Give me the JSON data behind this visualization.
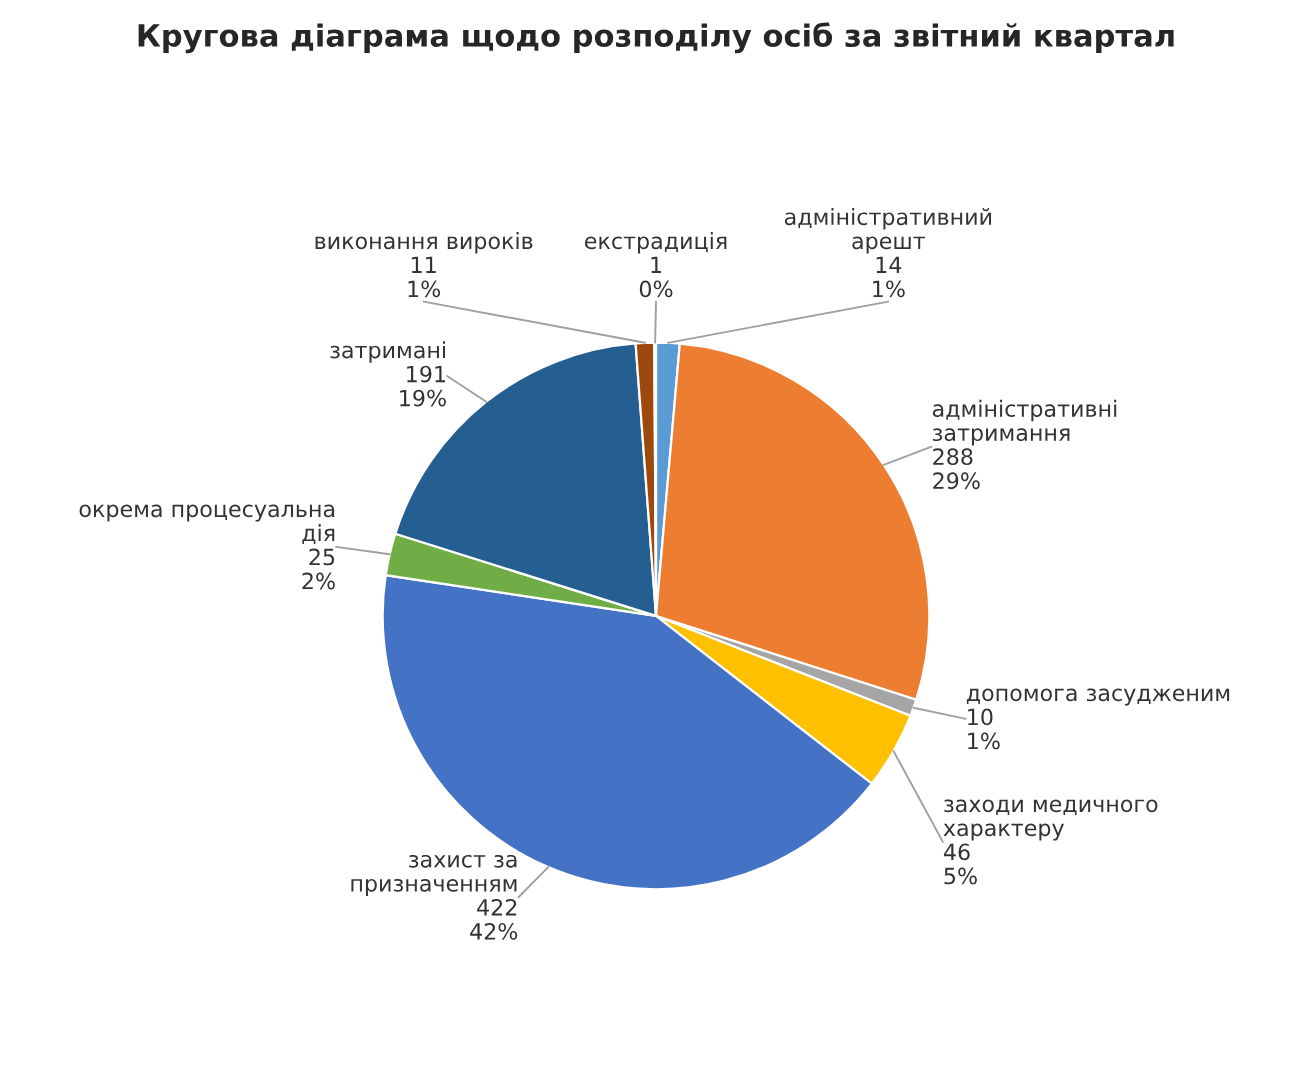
{
  "chart_data": {
    "type": "pie",
    "title": "Кругова діаграма щодо розподілу осіб за звітний квартал",
    "categories": [
      "адміністративний\nарешт",
      "адміністративні\nзатримання",
      "допомога засудженим",
      "заходи медичного\nхарактеру",
      "захист за\nпризначенням",
      "окрема процесуальна\nдія",
      "затримані",
      "виконання вироків",
      "екстрадиція"
    ],
    "values": [
      14,
      288,
      10,
      46,
      422,
      25,
      191,
      11,
      1
    ],
    "value_labels": [
      "14\n1%",
      "288\n29%",
      "10\n1%",
      "46\n5%",
      "422\n42%",
      "25\n2%",
      "191\n19%",
      "11\n1%",
      "1\n0%"
    ],
    "colors": [
      "#5b9bd5",
      "#ed7d31",
      "#a5a5a5",
      "#ffc000",
      "#4472c4",
      "#70ad47",
      "#255e91",
      "#9e480e",
      "#636363"
    ],
    "legend": false
  }
}
